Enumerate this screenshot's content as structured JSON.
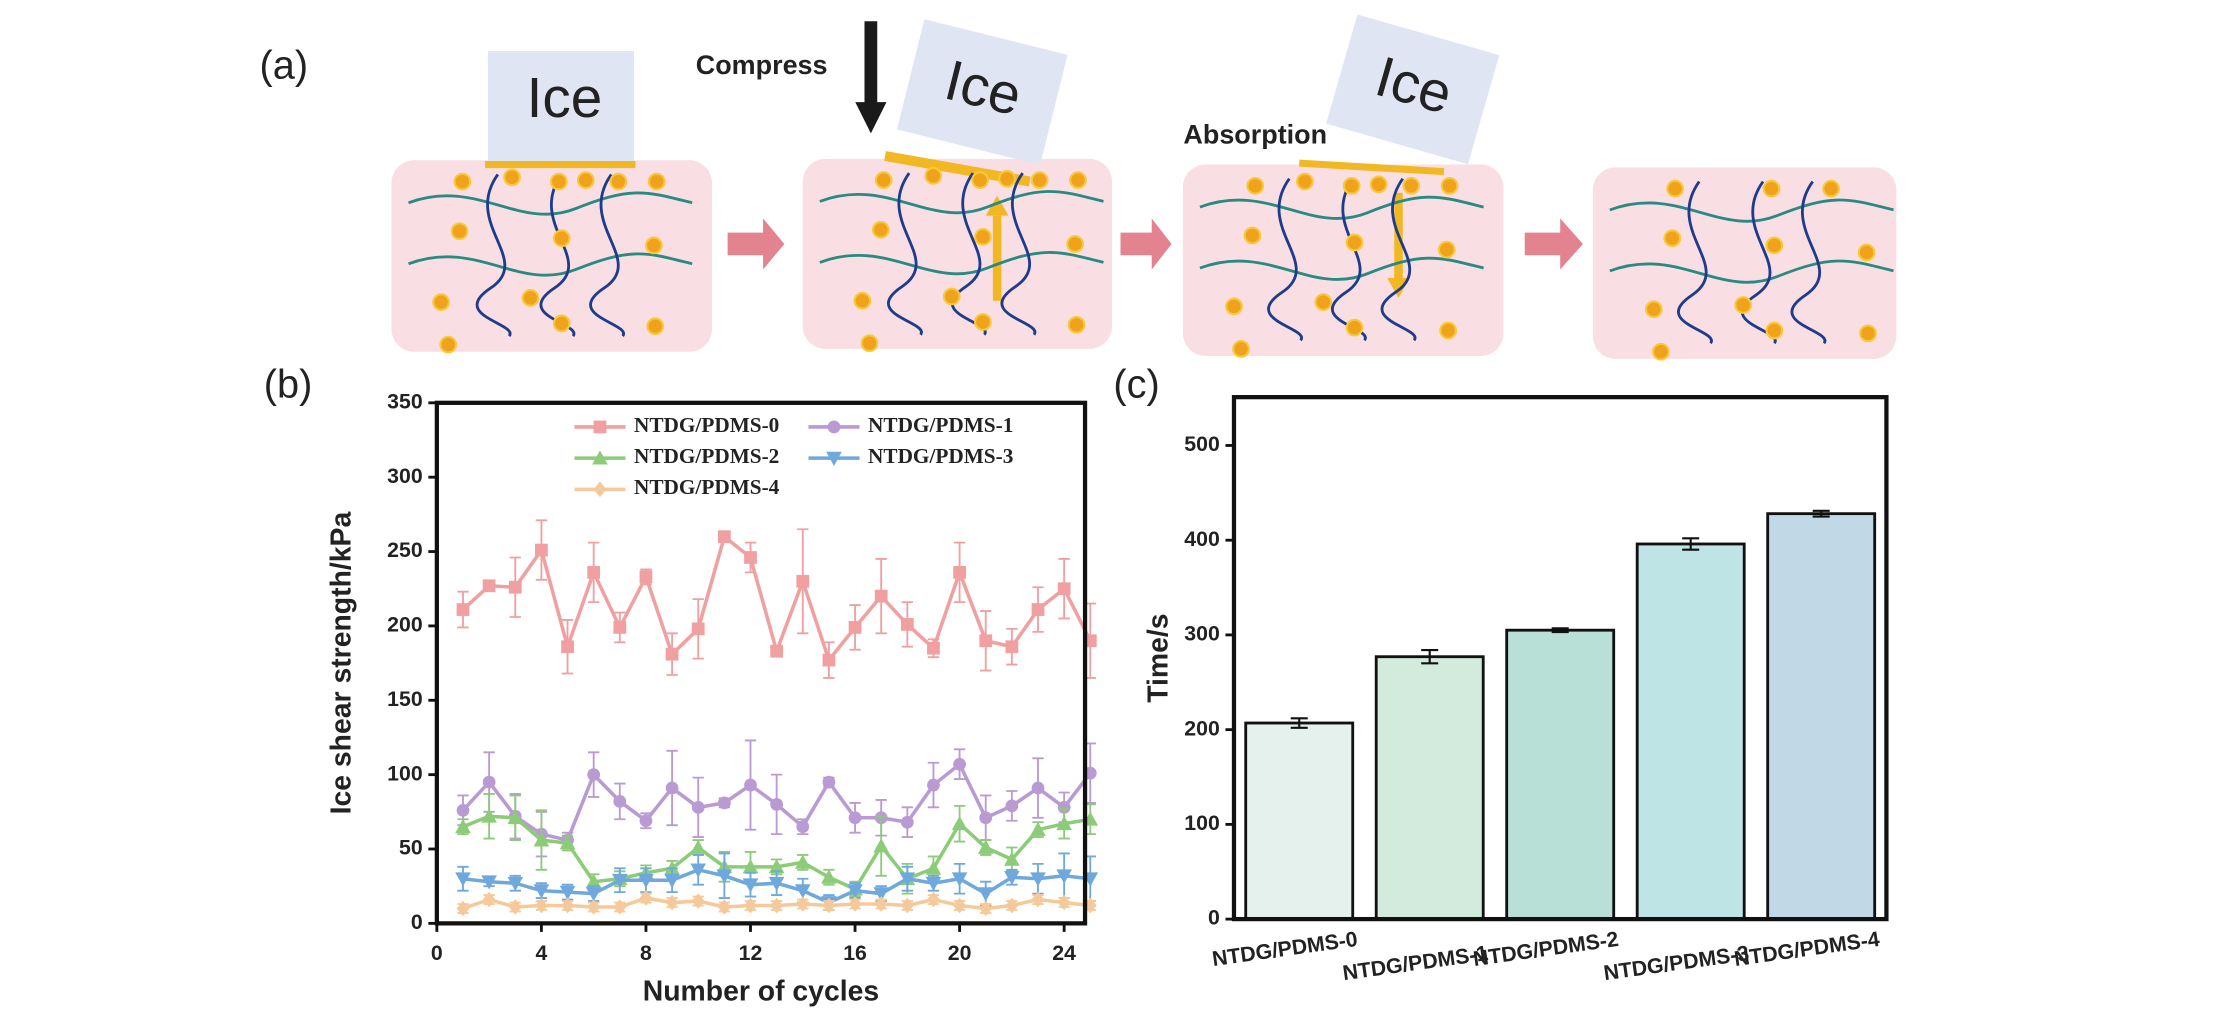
{
  "diagram": {
    "panel_label": "(a)",
    "ice_labels": [
      "Ice",
      "Ice",
      "Ice"
    ],
    "compress": "Compress",
    "absorption": "Absorption"
  },
  "chart_data": [
    {
      "type": "line",
      "panel_label": "(b)",
      "x_label": "Number of cycles",
      "y_label": "Ice shear strength/kPa",
      "x": [
        1,
        2,
        3,
        4,
        5,
        6,
        7,
        8,
        9,
        10,
        11,
        12,
        13,
        14,
        15,
        16,
        17,
        18,
        19,
        20,
        21,
        22,
        23,
        24,
        25
      ],
      "xlim": [
        0,
        24.8
      ],
      "xticks": [
        0,
        4,
        8,
        12,
        16,
        20,
        24
      ],
      "ylim": [
        0,
        350
      ],
      "yticks": [
        0,
        50,
        100,
        150,
        200,
        250,
        300,
        350
      ],
      "series": [
        {
          "name": "NTDG/PDMS-0",
          "color": "#f0a0a0",
          "marker": "square",
          "values": [
            211,
            227,
            226,
            251,
            186,
            236,
            199,
            233,
            181,
            198,
            260,
            246,
            183,
            230,
            177,
            199,
            220,
            201,
            185,
            236,
            190,
            186,
            211,
            225,
            190
          ],
          "errors": [
            12,
            2,
            20,
            20,
            18,
            20,
            10,
            5,
            14,
            20,
            3,
            10,
            3,
            35,
            12,
            15,
            25,
            15,
            6,
            20,
            20,
            12,
            15,
            20,
            25
          ]
        },
        {
          "name": "NTDG/PDMS-1",
          "color": "#b99ad3",
          "marker": "circle",
          "values": [
            76,
            95,
            72,
            60,
            56,
            100,
            82,
            69,
            91,
            78,
            81,
            93,
            80,
            65,
            95,
            71,
            71,
            68,
            93,
            107,
            71,
            79,
            91,
            78,
            101
          ],
          "errors": [
            10,
            20,
            15,
            15,
            5,
            15,
            12,
            5,
            25,
            20,
            3,
            30,
            20,
            5,
            3,
            10,
            12,
            10,
            15,
            10,
            15,
            10,
            20,
            10,
            20
          ]
        },
        {
          "name": "NTDG/PDMS-2",
          "color": "#8ccc78",
          "marker": "triangle-up",
          "values": [
            65,
            72,
            71,
            56,
            54,
            28,
            30,
            34,
            37,
            51,
            38,
            38,
            38,
            41,
            31,
            23,
            52,
            30,
            37,
            67,
            51,
            43,
            63,
            67,
            70
          ],
          "errors": [
            5,
            15,
            15,
            20,
            5,
            5,
            5,
            5,
            5,
            5,
            10,
            10,
            5,
            5,
            5,
            5,
            20,
            10,
            8,
            12,
            5,
            8,
            5,
            10,
            10
          ]
        },
        {
          "name": "NTDG/PDMS-3",
          "color": "#6fa8dc",
          "marker": "triangle-down",
          "values": [
            30,
            28,
            27,
            22,
            21,
            20,
            29,
            29,
            29,
            36,
            32,
            26,
            27,
            22,
            14,
            22,
            20,
            30,
            27,
            30,
            20,
            31,
            30,
            32,
            30
          ],
          "errors": [
            8,
            3,
            5,
            5,
            5,
            5,
            8,
            8,
            8,
            10,
            15,
            8,
            8,
            8,
            5,
            5,
            5,
            8,
            5,
            10,
            8,
            5,
            10,
            15,
            15
          ]
        },
        {
          "name": "NTDG/PDMS-4",
          "color": "#f5c99a",
          "marker": "diamond",
          "values": [
            10,
            16,
            11,
            12,
            12,
            11,
            11,
            17,
            14,
            15,
            11,
            12,
            12,
            13,
            12,
            13,
            13,
            12,
            16,
            12,
            10,
            12,
            16,
            14,
            12
          ],
          "errors": [
            3,
            3,
            3,
            3,
            3,
            3,
            3,
            3,
            3,
            3,
            3,
            3,
            3,
            3,
            3,
            3,
            3,
            3,
            3,
            3,
            3,
            3,
            3,
            3,
            3
          ]
        }
      ]
    },
    {
      "type": "bar",
      "panel_label": "(c)",
      "y_label": "Time/s",
      "categories": [
        "NTDG/PDMS-0",
        "NTDG/PDMS-1",
        "NTDG/PDMS-2",
        "NTDG/PDMS-3",
        "NTDG/PDMS-4"
      ],
      "values": [
        207,
        277,
        305,
        396,
        428
      ],
      "errors": [
        5,
        7,
        2,
        6,
        3
      ],
      "colors": [
        "#e4f1ec",
        "#d3ebdc",
        "#b8e0d6",
        "#bfe4e6",
        "#c1d9e6"
      ],
      "ylim": [
        0,
        551
      ],
      "yticks": [
        0,
        100,
        200,
        300,
        400,
        500
      ]
    }
  ]
}
